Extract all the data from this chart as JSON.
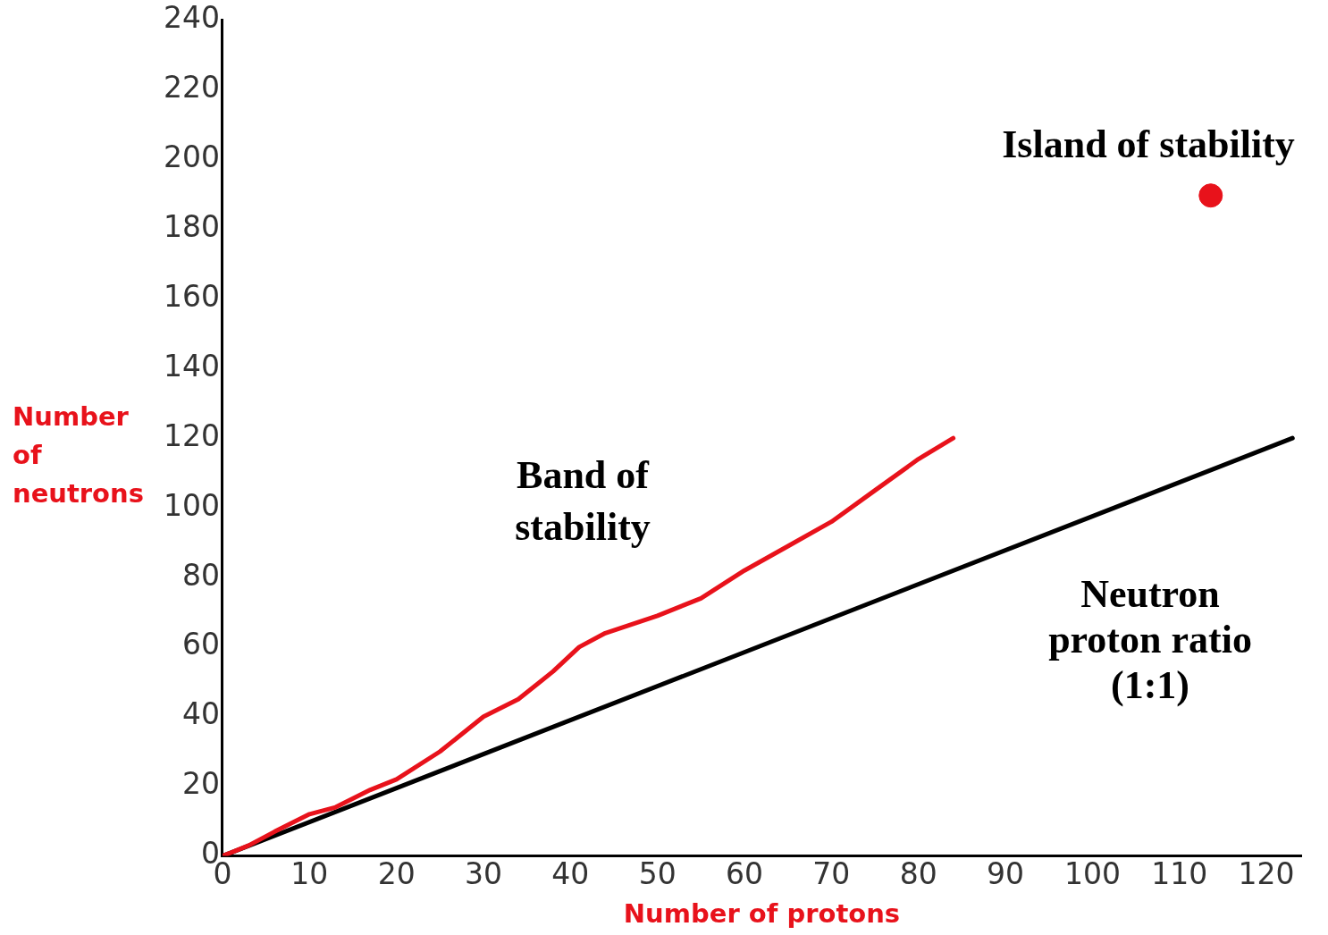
{
  "chart_data": {
    "type": "line",
    "xlabel": "Number of protons",
    "ylabel": "Number of neutrons",
    "xlim": [
      0,
      124
    ],
    "xticks": [
      0,
      10,
      20,
      30,
      40,
      50,
      60,
      70,
      80,
      90,
      100,
      110,
      120
    ],
    "ylim": [
      0,
      240
    ],
    "yticks": [
      0,
      20,
      40,
      60,
      80,
      100,
      120,
      140,
      160,
      180,
      200,
      220,
      240
    ],
    "grid": false,
    "legend": false,
    "line_style": "solid",
    "series": [
      {
        "color": "#e8121b",
        "x": [
          0,
          3,
          6,
          10,
          13,
          17,
          20,
          25,
          30,
          34,
          38,
          41,
          44,
          50,
          55,
          60,
          65,
          70,
          75,
          80,
          84
        ],
        "values": [
          0,
          3,
          7,
          12,
          14,
          19,
          22,
          30,
          40,
          45,
          53,
          60,
          64,
          69,
          74,
          82,
          89,
          96,
          105,
          114,
          120
        ]
      },
      {
        "color": "#000000",
        "x": [
          0,
          123
        ],
        "values": [
          0,
          120
        ]
      },
      {
        "type": "scatter",
        "color": "#e8121b",
        "x": [
          113.6
        ],
        "values": [
          189.7
        ]
      }
    ],
    "annotations": [
      "Island of stability",
      "Band of stability",
      "Neutron proton ratio (1:1)"
    ]
  }
}
